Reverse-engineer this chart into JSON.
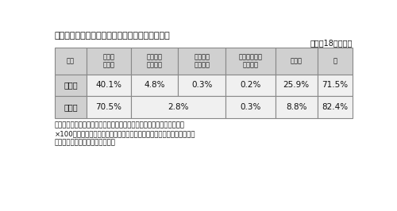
{
  "title": "表１－４－２　生活排水処理施設の整備率の状況",
  "subtitle": "（平成18年度末）",
  "col_headers": [
    "区域",
    "公　共\n下水道",
    "農業集落\n排水施設",
    "漁業集落\n排水施設",
    "コミュニティ\nプラント",
    "浄化槽",
    "計"
  ],
  "row1_label": "三重県",
  "row1_data": [
    "40.1%",
    "4.8%",
    "0.3%",
    "0.2%",
    "25.9%",
    "71.5%"
  ],
  "row2_label": "全　国",
  "row2_data": [
    "70.5%",
    "2.8%",
    "0.3%",
    "8.8%",
    "82.4%"
  ],
  "note_lines": [
    "注）生活排水処理施設の整備率：処理可能居住人口／住民基本台帳人口",
    "×100（％）。全国の整備率は国の公表データを基に三重県が算出。率の",
    "計は四捨五入の関係で合わない。"
  ],
  "bg_color": "#ffffff",
  "header_bg": "#d0d0d0",
  "cell_bg_odd": "#f0f0f0",
  "cell_bg_even": "#ffffff",
  "border_color": "#888888",
  "text_color": "#111111"
}
